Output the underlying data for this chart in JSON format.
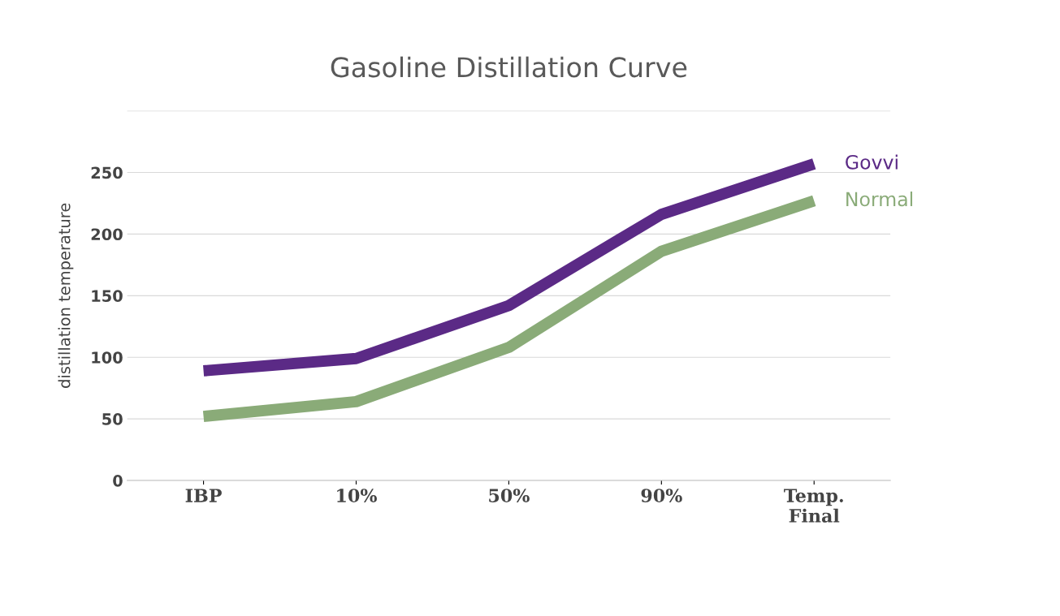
{
  "chart_data": {
    "type": "line",
    "title": "Gasoline Distillation Curve",
    "ylabel": "distillation temperature",
    "categories": [
      "IBP",
      "10%",
      "50%",
      "90%",
      "Temp.\nFinal"
    ],
    "series": [
      {
        "name": "Govvi",
        "color": "#5b2a86",
        "values": [
          89,
          99,
          142,
          216,
          257
        ]
      },
      {
        "name": "Normal",
        "color": "#8aab78",
        "values": [
          52,
          64,
          108,
          186,
          227
        ]
      }
    ],
    "ylim": [
      0,
      300
    ],
    "yticks": [
      0,
      50,
      100,
      150,
      200,
      250,
      {
        "value": 300,
        "label": null
      }
    ],
    "grid": "y",
    "marker": "none",
    "line_style": "solid"
  }
}
